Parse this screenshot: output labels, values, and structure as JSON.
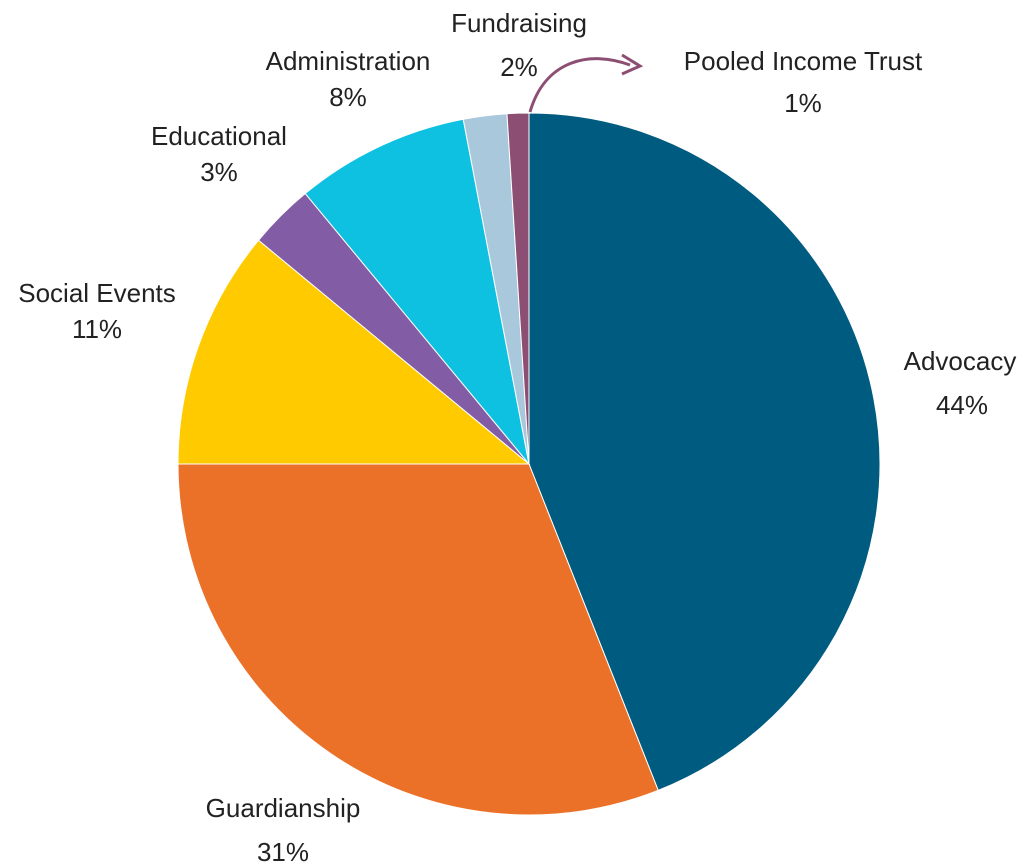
{
  "chart_data": {
    "type": "pie",
    "start_angle_deg": 0,
    "direction": "clockwise",
    "slices": [
      {
        "label": "Advocacy",
        "value": 44,
        "display": "44%",
        "color": "#005b80"
      },
      {
        "label": "Guardianship",
        "value": 31,
        "display": "31%",
        "color": "#eb7128"
      },
      {
        "label": "Social Events",
        "value": 11,
        "display": "11%",
        "color": "#ffca00"
      },
      {
        "label": "Educational",
        "value": 3,
        "display": "3%",
        "color": "#825ca4"
      },
      {
        "label": "Administration",
        "value": 8,
        "display": "8%",
        "color": "#0ec1e1"
      },
      {
        "label": "Fundraising",
        "value": 2,
        "display": "2%",
        "color": "#a9c8dc"
      },
      {
        "label": "Pooled Income Trust",
        "value": 1,
        "display": "1%",
        "color": "#8c4f73"
      }
    ],
    "callout_arrow_color": "#8c4f73",
    "legend": "none"
  }
}
